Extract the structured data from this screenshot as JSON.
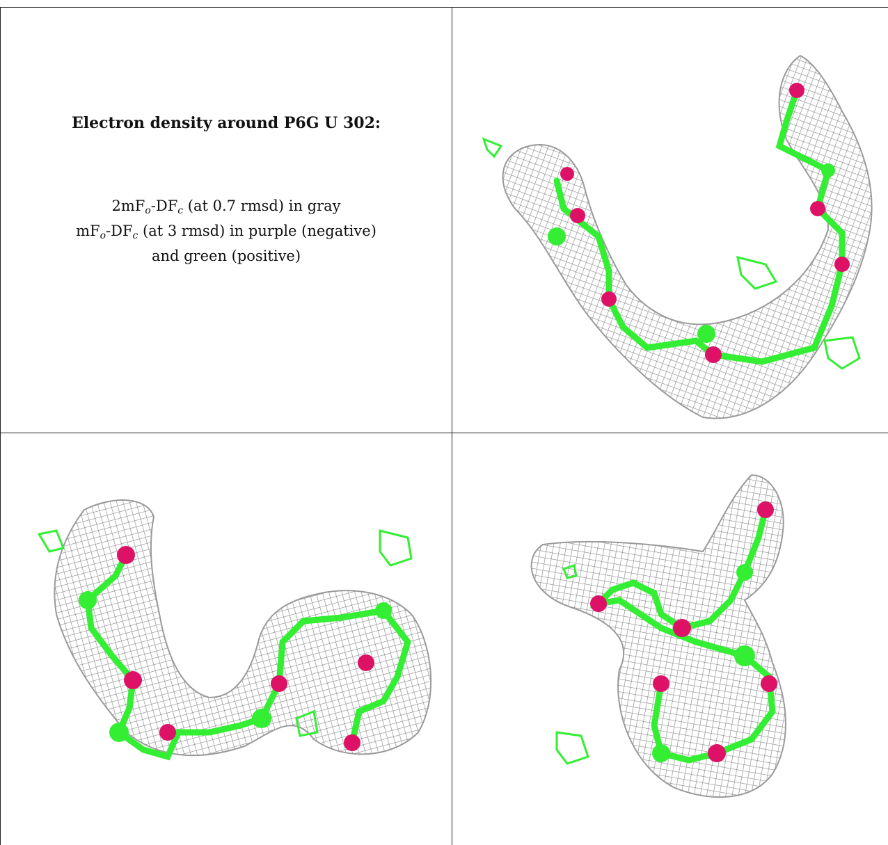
{
  "caption": {
    "title": "Electron density around P6G U 302:",
    "line1_prefix": "2mF",
    "line1_sub1": "o",
    "line1_mid": "-DF",
    "line1_sub2": "c",
    "line1_suffix": " (at 0.7 rmsd) in gray",
    "line2_prefix": "mF",
    "line2_sub1": "o",
    "line2_mid": "-DF",
    "line2_sub2": "c",
    "line2_suffix": " (at 3 rmsd) in purple (negative)",
    "line3": "and green (positive)"
  },
  "colors": {
    "mesh_gray": "#8c8c8c",
    "positive_green": "#33ee33",
    "negative_magenta": "#dd1166",
    "border": "#222222"
  }
}
